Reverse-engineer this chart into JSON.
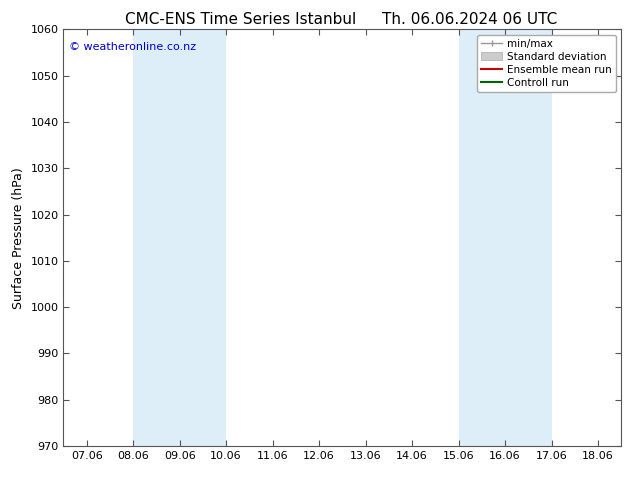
{
  "title_left": "CMC-ENS Time Series Istanbul",
  "title_right": "Th. 06.06.2024 06 UTC",
  "ylabel": "Surface Pressure (hPa)",
  "ylim": [
    970,
    1060
  ],
  "yticks": [
    970,
    980,
    990,
    1000,
    1010,
    1020,
    1030,
    1040,
    1050,
    1060
  ],
  "xtick_labels": [
    "07.06",
    "08.06",
    "09.06",
    "10.06",
    "11.06",
    "12.06",
    "13.06",
    "14.06",
    "15.06",
    "16.06",
    "17.06",
    "18.06"
  ],
  "xtick_positions": [
    0,
    1,
    2,
    3,
    4,
    5,
    6,
    7,
    8,
    9,
    10,
    11
  ],
  "xlim": [
    -0.5,
    11.5
  ],
  "shaded_bands": [
    {
      "x_start": 1.0,
      "x_end": 3.0,
      "color": "#ddeef8"
    },
    {
      "x_start": 8.0,
      "x_end": 10.0,
      "color": "#ddeef8"
    }
  ],
  "watermark": "© weatheronline.co.nz",
  "watermark_color": "#0000cc",
  "bg_color": "#ffffff",
  "plot_bg_color": "#ffffff",
  "spine_color": "#555555",
  "title_fontsize": 11,
  "axis_label_fontsize": 9,
  "tick_fontsize": 8,
  "legend_fontsize": 7.5
}
